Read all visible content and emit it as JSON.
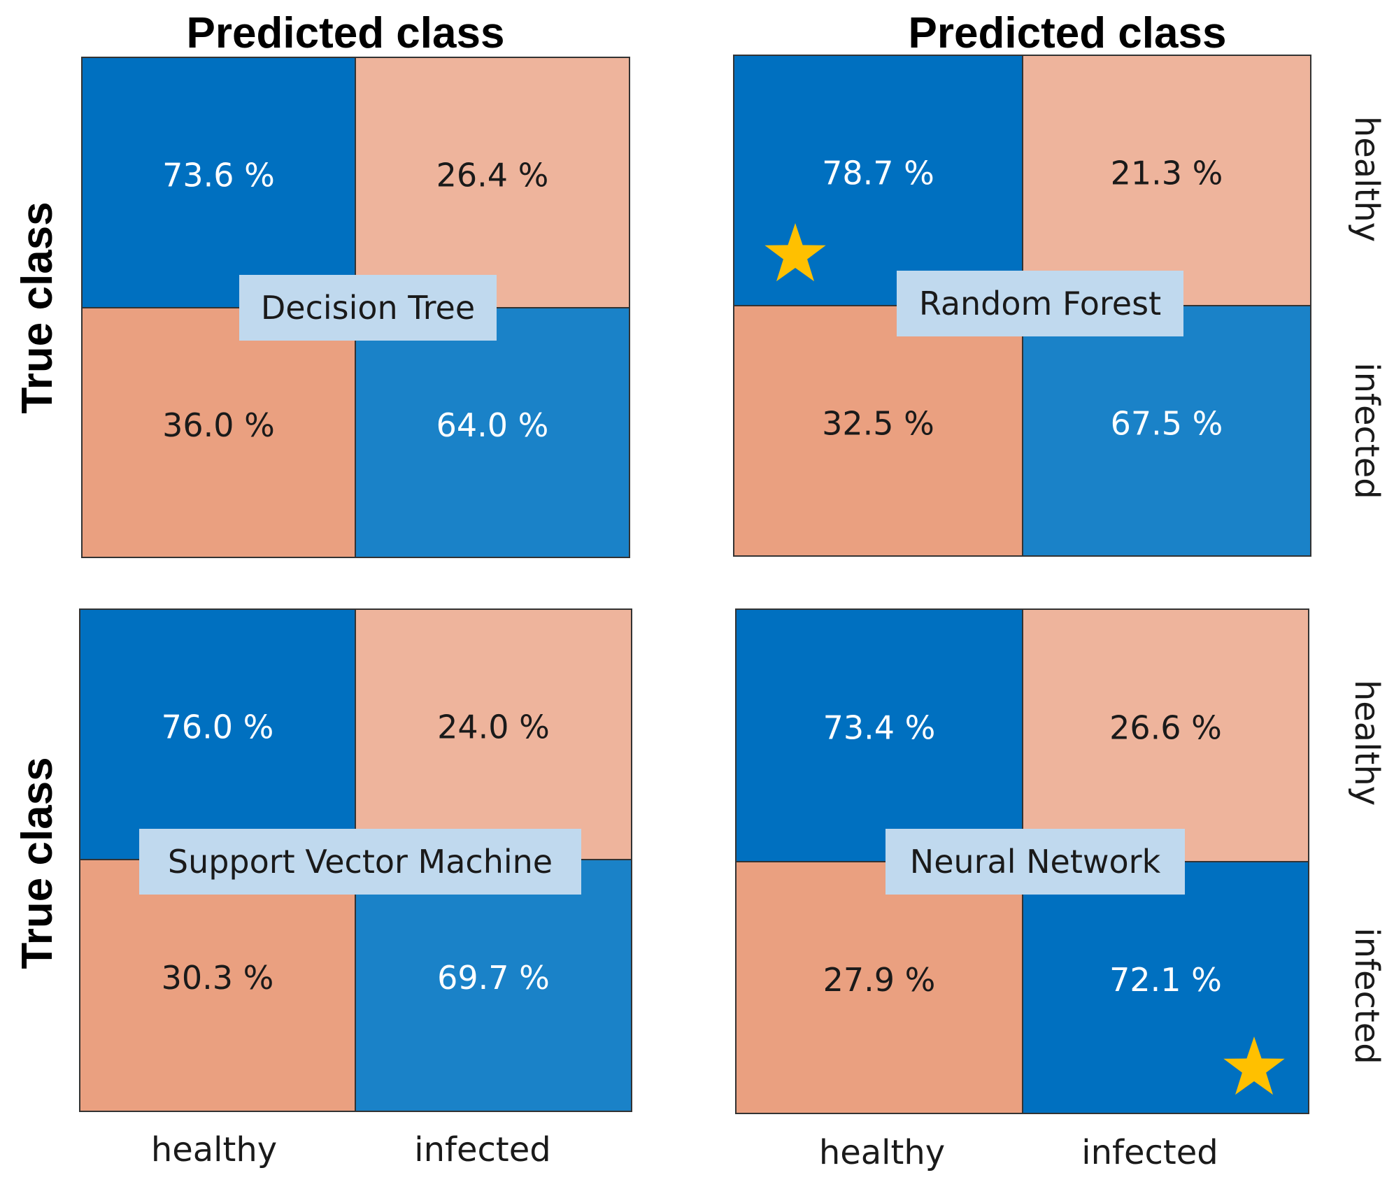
{
  "figure": {
    "col_axis_title": "Predicted class",
    "row_axis_title": "True class",
    "col_labels": [
      "healthy",
      "infected"
    ],
    "row_labels": [
      "healthy",
      "infected"
    ]
  },
  "colors": {
    "tp_high": "#0070c0",
    "tp_low": "#1a82c8",
    "fp_high": "#eaa080",
    "fp_low": "#eeb49c",
    "label_box": "#c0d9ee",
    "star": "#ffc000"
  },
  "chart_data": [
    {
      "type": "heatmap",
      "title": "Decision Tree",
      "xlabel": "Predicted class",
      "ylabel": "True class",
      "categories": [
        "healthy",
        "infected"
      ],
      "values": [
        [
          73.6,
          26.4
        ],
        [
          36.0,
          64.0
        ]
      ],
      "value_labels": [
        [
          "73.6 %",
          "26.4 %"
        ],
        [
          "36.0 %",
          "64.0 %"
        ]
      ],
      "best": null
    },
    {
      "type": "heatmap",
      "title": "Random Forest",
      "xlabel": "Predicted class",
      "ylabel": "True class",
      "categories": [
        "healthy",
        "infected"
      ],
      "values": [
        [
          78.7,
          21.3
        ],
        [
          32.5,
          67.5
        ]
      ],
      "value_labels": [
        [
          "78.7 %",
          "21.3 %"
        ],
        [
          "32.5 %",
          "67.5 %"
        ]
      ],
      "best": [
        0,
        0
      ]
    },
    {
      "type": "heatmap",
      "title": "Support Vector Machine",
      "xlabel": "Predicted class",
      "ylabel": "True class",
      "categories": [
        "healthy",
        "infected"
      ],
      "values": [
        [
          76.0,
          24.0
        ],
        [
          30.3,
          69.7
        ]
      ],
      "value_labels": [
        [
          "76.0 %",
          "24.0 %"
        ],
        [
          "30.3 %",
          "69.7 %"
        ]
      ],
      "best": null
    },
    {
      "type": "heatmap",
      "title": "Neural Network",
      "xlabel": "Predicted class",
      "ylabel": "True class",
      "categories": [
        "healthy",
        "infected"
      ],
      "values": [
        [
          73.4,
          26.6
        ],
        [
          27.9,
          72.1
        ]
      ],
      "value_labels": [
        [
          "73.4 %",
          "26.6 %"
        ],
        [
          "27.9 %",
          "72.1 %"
        ]
      ],
      "best": [
        1,
        1
      ]
    }
  ]
}
